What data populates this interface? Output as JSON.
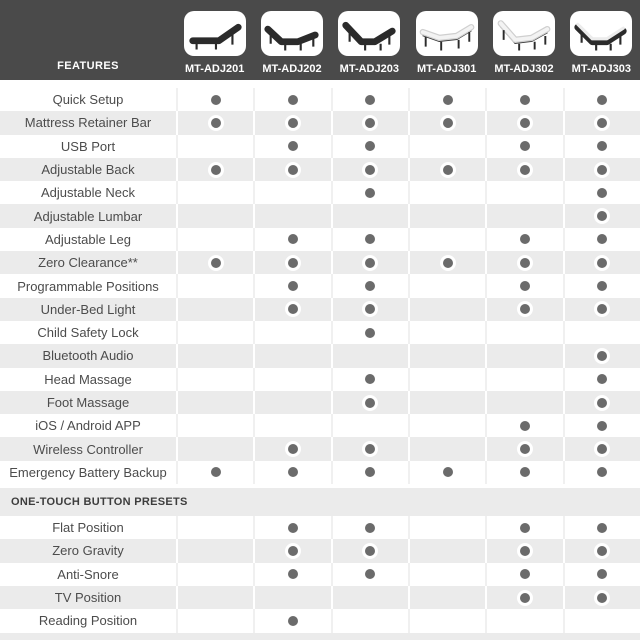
{
  "header": {
    "features_label": "FEATURES",
    "products": [
      {
        "name": "MT-ADJ201",
        "icon": "bed-dark-head-incline"
      },
      {
        "name": "MT-ADJ202",
        "icon": "bed-dark-head-foot"
      },
      {
        "name": "MT-ADJ203",
        "icon": "bed-dark-steep-head-foot"
      },
      {
        "name": "MT-ADJ301",
        "icon": "bed-light-wave"
      },
      {
        "name": "MT-ADJ302",
        "icon": "bed-light-head-foot"
      },
      {
        "name": "MT-ADJ303",
        "icon": "bed-twotone-head-foot"
      }
    ]
  },
  "colors": {
    "header_bg": "#4a4a4a",
    "row_alt_bg": "#ebebeb",
    "dot": "#6b6b6b",
    "label_text": "#4c4c4c",
    "header_text": "#ffffff"
  },
  "sections": [
    {
      "title": "",
      "rows": [
        {
          "label": "Quick Setup",
          "values": [
            1,
            1,
            1,
            1,
            1,
            1
          ]
        },
        {
          "label": "Mattress Retainer Bar",
          "values": [
            1,
            1,
            1,
            1,
            1,
            1
          ]
        },
        {
          "label": "USB Port",
          "values": [
            0,
            1,
            1,
            0,
            1,
            1
          ]
        },
        {
          "label": "Adjustable Back",
          "values": [
            1,
            1,
            1,
            1,
            1,
            1
          ]
        },
        {
          "label": "Adjustable Neck",
          "values": [
            0,
            0,
            1,
            0,
            0,
            1
          ]
        },
        {
          "label": "Adjustable Lumbar",
          "values": [
            0,
            0,
            0,
            0,
            0,
            1
          ]
        },
        {
          "label": "Adjustable Leg",
          "values": [
            0,
            1,
            1,
            0,
            1,
            1
          ]
        },
        {
          "label": "Zero Clearance**",
          "values": [
            1,
            1,
            1,
            1,
            1,
            1
          ]
        },
        {
          "label": "Programmable Positions",
          "values": [
            0,
            1,
            1,
            0,
            1,
            1
          ]
        },
        {
          "label": "Under-Bed Light",
          "values": [
            0,
            1,
            1,
            0,
            1,
            1
          ]
        },
        {
          "label": "Child Safety Lock",
          "values": [
            0,
            0,
            1,
            0,
            0,
            0
          ]
        },
        {
          "label": "Bluetooth Audio",
          "values": [
            0,
            0,
            0,
            0,
            0,
            1
          ]
        },
        {
          "label": "Head Massage",
          "values": [
            0,
            0,
            1,
            0,
            0,
            1
          ]
        },
        {
          "label": "Foot Massage",
          "values": [
            0,
            0,
            1,
            0,
            0,
            1
          ]
        },
        {
          "label": "iOS / Android APP",
          "values": [
            0,
            0,
            0,
            0,
            1,
            1
          ]
        },
        {
          "label": "Wireless Controller",
          "values": [
            0,
            1,
            1,
            0,
            1,
            1
          ]
        },
        {
          "label": "Emergency Battery Backup",
          "values": [
            1,
            1,
            1,
            1,
            1,
            1
          ]
        }
      ]
    },
    {
      "title": "ONE-TOUCH BUTTON PRESETS",
      "rows": [
        {
          "label": "Flat Position",
          "values": [
            0,
            1,
            1,
            0,
            1,
            1
          ]
        },
        {
          "label": "Zero Gravity",
          "values": [
            0,
            1,
            1,
            0,
            1,
            1
          ]
        },
        {
          "label": "Anti-Snore",
          "values": [
            0,
            1,
            1,
            0,
            1,
            1
          ]
        },
        {
          "label": "TV Position",
          "values": [
            0,
            0,
            0,
            0,
            1,
            1
          ]
        },
        {
          "label": "Reading Position",
          "values": [
            0,
            1,
            0,
            0,
            0,
            0
          ]
        }
      ]
    }
  ]
}
